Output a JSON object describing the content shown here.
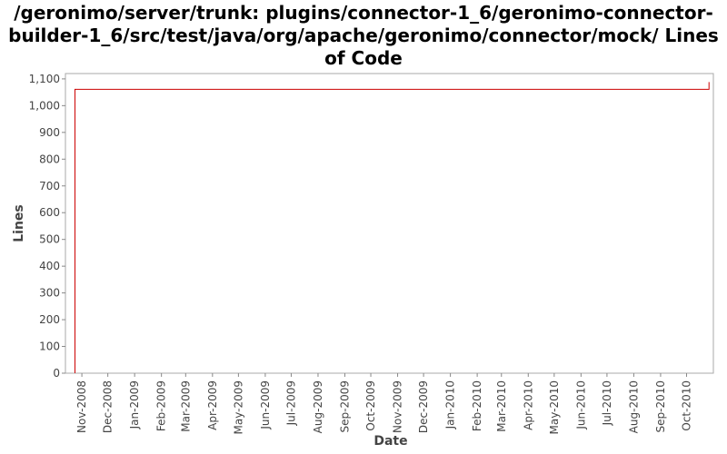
{
  "chart_data": {
    "type": "line",
    "title": "/geronimo/server/trunk: plugins/connector-1_6/geronimo-connector-builder-1_6/src/test/java/org/apache/geronimo/connector/mock/ Lines of Code",
    "xlabel": "Date",
    "ylabel": "Lines",
    "ylim": [
      0,
      1120
    ],
    "y_ticks": [
      0,
      100,
      200,
      300,
      400,
      500,
      600,
      700,
      800,
      900,
      1000,
      1100
    ],
    "y_tick_labels": [
      "0",
      "100",
      "200",
      "300",
      "400",
      "500",
      "600",
      "700",
      "800",
      "900",
      "1,000",
      "1,100"
    ],
    "x_tick_labels": [
      "Nov-2008",
      "Dec-2008",
      "Jan-2009",
      "Feb-2009",
      "Mar-2009",
      "Apr-2009",
      "May-2009",
      "Jun-2009",
      "Jul-2009",
      "Aug-2009",
      "Sep-2009",
      "Oct-2009",
      "Nov-2009",
      "Dec-2009",
      "Jan-2010",
      "Feb-2010",
      "Mar-2010",
      "Apr-2010",
      "May-2010",
      "Jun-2010",
      "Jul-2010",
      "Aug-2010",
      "Sep-2010",
      "Oct-2010"
    ],
    "xlim": [
      "2008-10-13",
      "2010-11-01"
    ],
    "grid": false,
    "series": [
      {
        "name": "",
        "color": "#cc0000",
        "x": [
          "2008-10-24",
          "2008-10-24",
          "2010-10-27",
          "2010-10-27"
        ],
        "y": [
          0,
          1061,
          1061,
          1088
        ]
      }
    ]
  }
}
